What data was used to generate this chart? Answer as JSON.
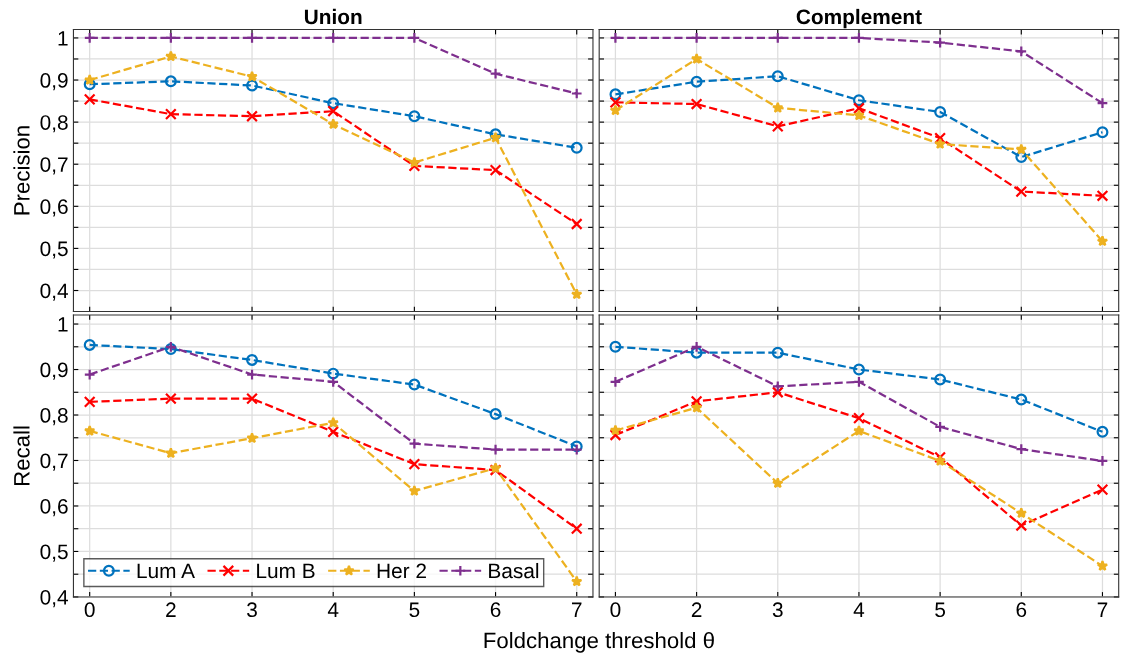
{
  "chart_data": [
    {
      "type": "line",
      "title": "Union",
      "ylabel": "Precision",
      "categories": [
        "0",
        "2",
        "3",
        "4",
        "5",
        "6",
        "7"
      ],
      "ylim": [
        0.35,
        1.02
      ],
      "yticks": [
        {
          "value": 0.4,
          "label": "0,4"
        },
        {
          "value": 0.45,
          "label": null
        },
        {
          "value": 0.5,
          "label": "0,5"
        },
        {
          "value": 0.55,
          "label": null
        },
        {
          "value": 0.6,
          "label": "0,6"
        },
        {
          "value": 0.65,
          "label": null
        },
        {
          "value": 0.7,
          "label": "0,7"
        },
        {
          "value": 0.75,
          "label": null
        },
        {
          "value": 0.8,
          "label": "0,8"
        },
        {
          "value": 0.85,
          "label": null
        },
        {
          "value": 0.9,
          "label": "0,9"
        },
        {
          "value": 0.95,
          "label": null
        },
        {
          "value": 1,
          "label": "1"
        }
      ],
      "grid": true,
      "tick_labels": "y",
      "line_style": "dashed",
      "series": [
        {
          "color": "#0072bd",
          "marker": "circle",
          "values": [
            0.89,
            0.897,
            0.887,
            0.845,
            0.814,
            0.771,
            0.739
          ]
        },
        {
          "color": "#ff0000",
          "marker": "cross",
          "values": [
            0.854,
            0.819,
            0.814,
            0.826,
            0.696,
            0.686,
            0.558
          ]
        },
        {
          "color": "#edb120",
          "marker": "star",
          "values": [
            0.9,
            0.956,
            0.908,
            0.795,
            0.704,
            0.763,
            0.391
          ]
        },
        {
          "color": "#7e2f8e",
          "marker": "plus",
          "values": [
            1,
            1,
            1,
            1,
            1,
            0.915,
            0.868
          ]
        }
      ]
    },
    {
      "type": "line",
      "title": "Complement",
      "categories": [
        "0",
        "2",
        "3",
        "4",
        "5",
        "6",
        "7"
      ],
      "ylim": [
        0.35,
        1.02
      ],
      "yticks": [
        {
          "value": 0.4,
          "label": null
        },
        {
          "value": 0.45,
          "label": null
        },
        {
          "value": 0.5,
          "label": null
        },
        {
          "value": 0.55,
          "label": null
        },
        {
          "value": 0.6,
          "label": null
        },
        {
          "value": 0.65,
          "label": null
        },
        {
          "value": 0.7,
          "label": null
        },
        {
          "value": 0.75,
          "label": null
        },
        {
          "value": 0.8,
          "label": null
        },
        {
          "value": 0.85,
          "label": null
        },
        {
          "value": 0.9,
          "label": null
        },
        {
          "value": 0.95,
          "label": null
        },
        {
          "value": 1,
          "label": null
        }
      ],
      "grid": true,
      "tick_labels": false,
      "line_style": "dashed",
      "series": [
        {
          "color": "#0072bd",
          "marker": "circle",
          "values": [
            0.866,
            0.896,
            0.909,
            0.852,
            0.824,
            0.717,
            0.776
          ]
        },
        {
          "color": "#ff0000",
          "marker": "cross",
          "values": [
            0.847,
            0.843,
            0.79,
            0.833,
            0.762,
            0.635,
            0.625
          ]
        },
        {
          "color": "#edb120",
          "marker": "star",
          "values": [
            0.828,
            0.95,
            0.834,
            0.816,
            0.748,
            0.735,
            0.517
          ]
        },
        {
          "color": "#7e2f8e",
          "marker": "plus",
          "values": [
            1,
            1,
            1,
            1,
            0.989,
            0.968,
            0.845
          ]
        }
      ]
    },
    {
      "type": "line",
      "ylabel": "Recall",
      "xlabel": "Foldchange threshold θ",
      "categories": [
        "0",
        "2",
        "3",
        "4",
        "5",
        "6",
        "7"
      ],
      "ylim": [
        0.4,
        1.02
      ],
      "yticks": [
        {
          "value": 0.4,
          "label": "0,4"
        },
        {
          "value": 0.45,
          "label": null
        },
        {
          "value": 0.5,
          "label": "0,5"
        },
        {
          "value": 0.55,
          "label": null
        },
        {
          "value": 0.6,
          "label": "0,6"
        },
        {
          "value": 0.65,
          "label": null
        },
        {
          "value": 0.7,
          "label": "0,7"
        },
        {
          "value": 0.75,
          "label": null
        },
        {
          "value": 0.8,
          "label": "0,8"
        },
        {
          "value": 0.85,
          "label": null
        },
        {
          "value": 0.9,
          "label": "0,9"
        },
        {
          "value": 0.95,
          "label": null
        },
        {
          "value": 1,
          "label": "1"
        }
      ],
      "grid": true,
      "legend": "bottom left",
      "line_style": "dashed",
      "series": [
        {
          "name": "Lum A",
          "color": "#0072bd",
          "marker": "circle",
          "values": [
            0.954,
            0.945,
            0.921,
            0.891,
            0.867,
            0.802,
            0.731
          ]
        },
        {
          "name": "Lum B",
          "color": "#ff0000",
          "marker": "cross",
          "values": [
            0.829,
            0.836,
            0.836,
            0.763,
            0.692,
            0.679,
            0.55
          ]
        },
        {
          "name": "Her 2",
          "color": "#edb120",
          "marker": "star",
          "values": [
            0.765,
            0.716,
            0.749,
            0.783,
            0.633,
            0.683,
            0.434
          ]
        },
        {
          "name": "Basal",
          "color": "#7e2f8e",
          "marker": "plus",
          "values": [
            0.889,
            0.95,
            0.889,
            0.873,
            0.737,
            0.724,
            0.724
          ]
        }
      ]
    },
    {
      "type": "line",
      "categories": [
        "0",
        "2",
        "3",
        "4",
        "5",
        "6",
        "7"
      ],
      "ylim": [
        0.4,
        1.02
      ],
      "yticks": [
        {
          "value": 0.4,
          "label": null
        },
        {
          "value": 0.45,
          "label": null
        },
        {
          "value": 0.5,
          "label": null
        },
        {
          "value": 0.55,
          "label": null
        },
        {
          "value": 0.6,
          "label": null
        },
        {
          "value": 0.65,
          "label": null
        },
        {
          "value": 0.7,
          "label": null
        },
        {
          "value": 0.75,
          "label": null
        },
        {
          "value": 0.8,
          "label": null
        },
        {
          "value": 0.85,
          "label": null
        },
        {
          "value": 0.9,
          "label": null
        },
        {
          "value": 0.95,
          "label": null
        },
        {
          "value": 1,
          "label": null
        }
      ],
      "grid": true,
      "tick_labels": "x",
      "line_style": "dashed",
      "series": [
        {
          "color": "#0072bd",
          "marker": "circle",
          "values": [
            0.95,
            0.937,
            0.937,
            0.9,
            0.878,
            0.834,
            0.763
          ]
        },
        {
          "color": "#ff0000",
          "marker": "cross",
          "values": [
            0.756,
            0.83,
            0.85,
            0.793,
            0.707,
            0.557,
            0.636
          ]
        },
        {
          "color": "#edb120",
          "marker": "star",
          "values": [
            0.766,
            0.816,
            0.65,
            0.765,
            0.699,
            0.584,
            0.468
          ]
        },
        {
          "color": "#7e2f8e",
          "marker": "plus",
          "values": [
            0.873,
            0.95,
            0.863,
            0.873,
            0.774,
            0.725,
            0.699
          ]
        }
      ]
    }
  ]
}
